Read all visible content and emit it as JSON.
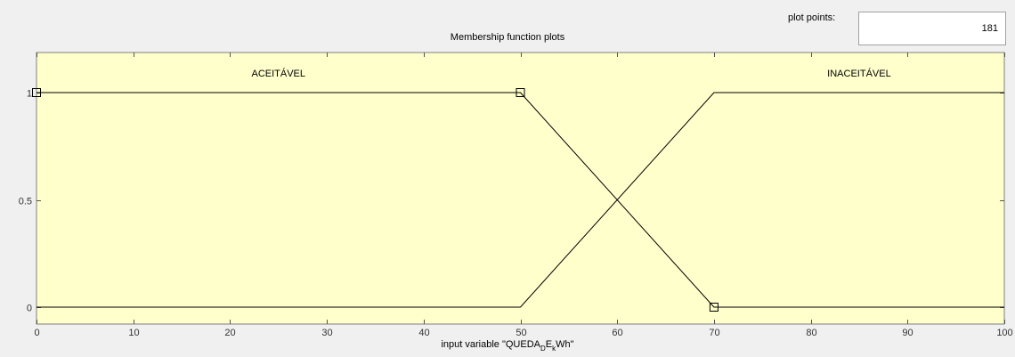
{
  "window": {
    "plot_title": "Membership function plots",
    "plot_points_label": "plot points:",
    "plot_points_value": "181"
  },
  "xlabel": {
    "prefix": "input variable \"QUEDA",
    "sub1": "D",
    "mid": "E",
    "sub2": "k",
    "suffix": "Wh\""
  },
  "colors": {
    "plot_bg": "#ffffcc",
    "line": "#000000",
    "window_bg": "#f0f0f0"
  },
  "chart_data": {
    "type": "line",
    "xlim": [
      0,
      100
    ],
    "ylim": [
      0,
      1
    ],
    "x_ticks": [
      "0",
      "10",
      "20",
      "30",
      "40",
      "50",
      "60",
      "70",
      "80",
      "90",
      "100"
    ],
    "y_ticks": [
      "0",
      "0.5",
      "1"
    ],
    "series": [
      {
        "name": "ACEITÁVEL",
        "points": [
          [
            0,
            1
          ],
          [
            50,
            1
          ],
          [
            70,
            0
          ],
          [
            100,
            0
          ]
        ],
        "label_x": 25,
        "selected_handles": [
          [
            0,
            1
          ],
          [
            50,
            1
          ],
          [
            70,
            0
          ]
        ]
      },
      {
        "name": "INACEITÁVEL",
        "points": [
          [
            0,
            0
          ],
          [
            50,
            0
          ],
          [
            70,
            1
          ],
          [
            100,
            1
          ]
        ],
        "label_x": 85
      }
    ],
    "grid": false
  }
}
